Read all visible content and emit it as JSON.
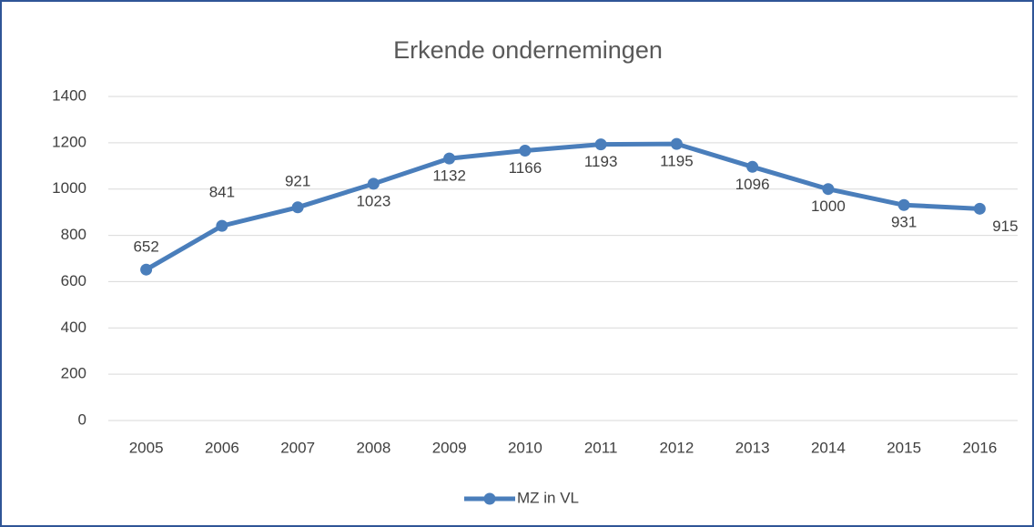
{
  "chart_data": {
    "type": "line",
    "title": "Erkende ondernemingen",
    "categories": [
      "2005",
      "2006",
      "2007",
      "2008",
      "2009",
      "2010",
      "2011",
      "2012",
      "2013",
      "2014",
      "2015",
      "2016"
    ],
    "series": [
      {
        "name": "MZ in VL",
        "color": "#4a7ebb",
        "values": [
          652,
          841,
          921,
          1023,
          1132,
          1166,
          1193,
          1195,
          1096,
          1000,
          931,
          915
        ]
      }
    ],
    "ylim": [
      0,
      1400
    ],
    "yticks": [
      0,
      200,
      400,
      600,
      800,
      1000,
      1200,
      1400
    ],
    "grid": true,
    "legend": "bottom"
  }
}
